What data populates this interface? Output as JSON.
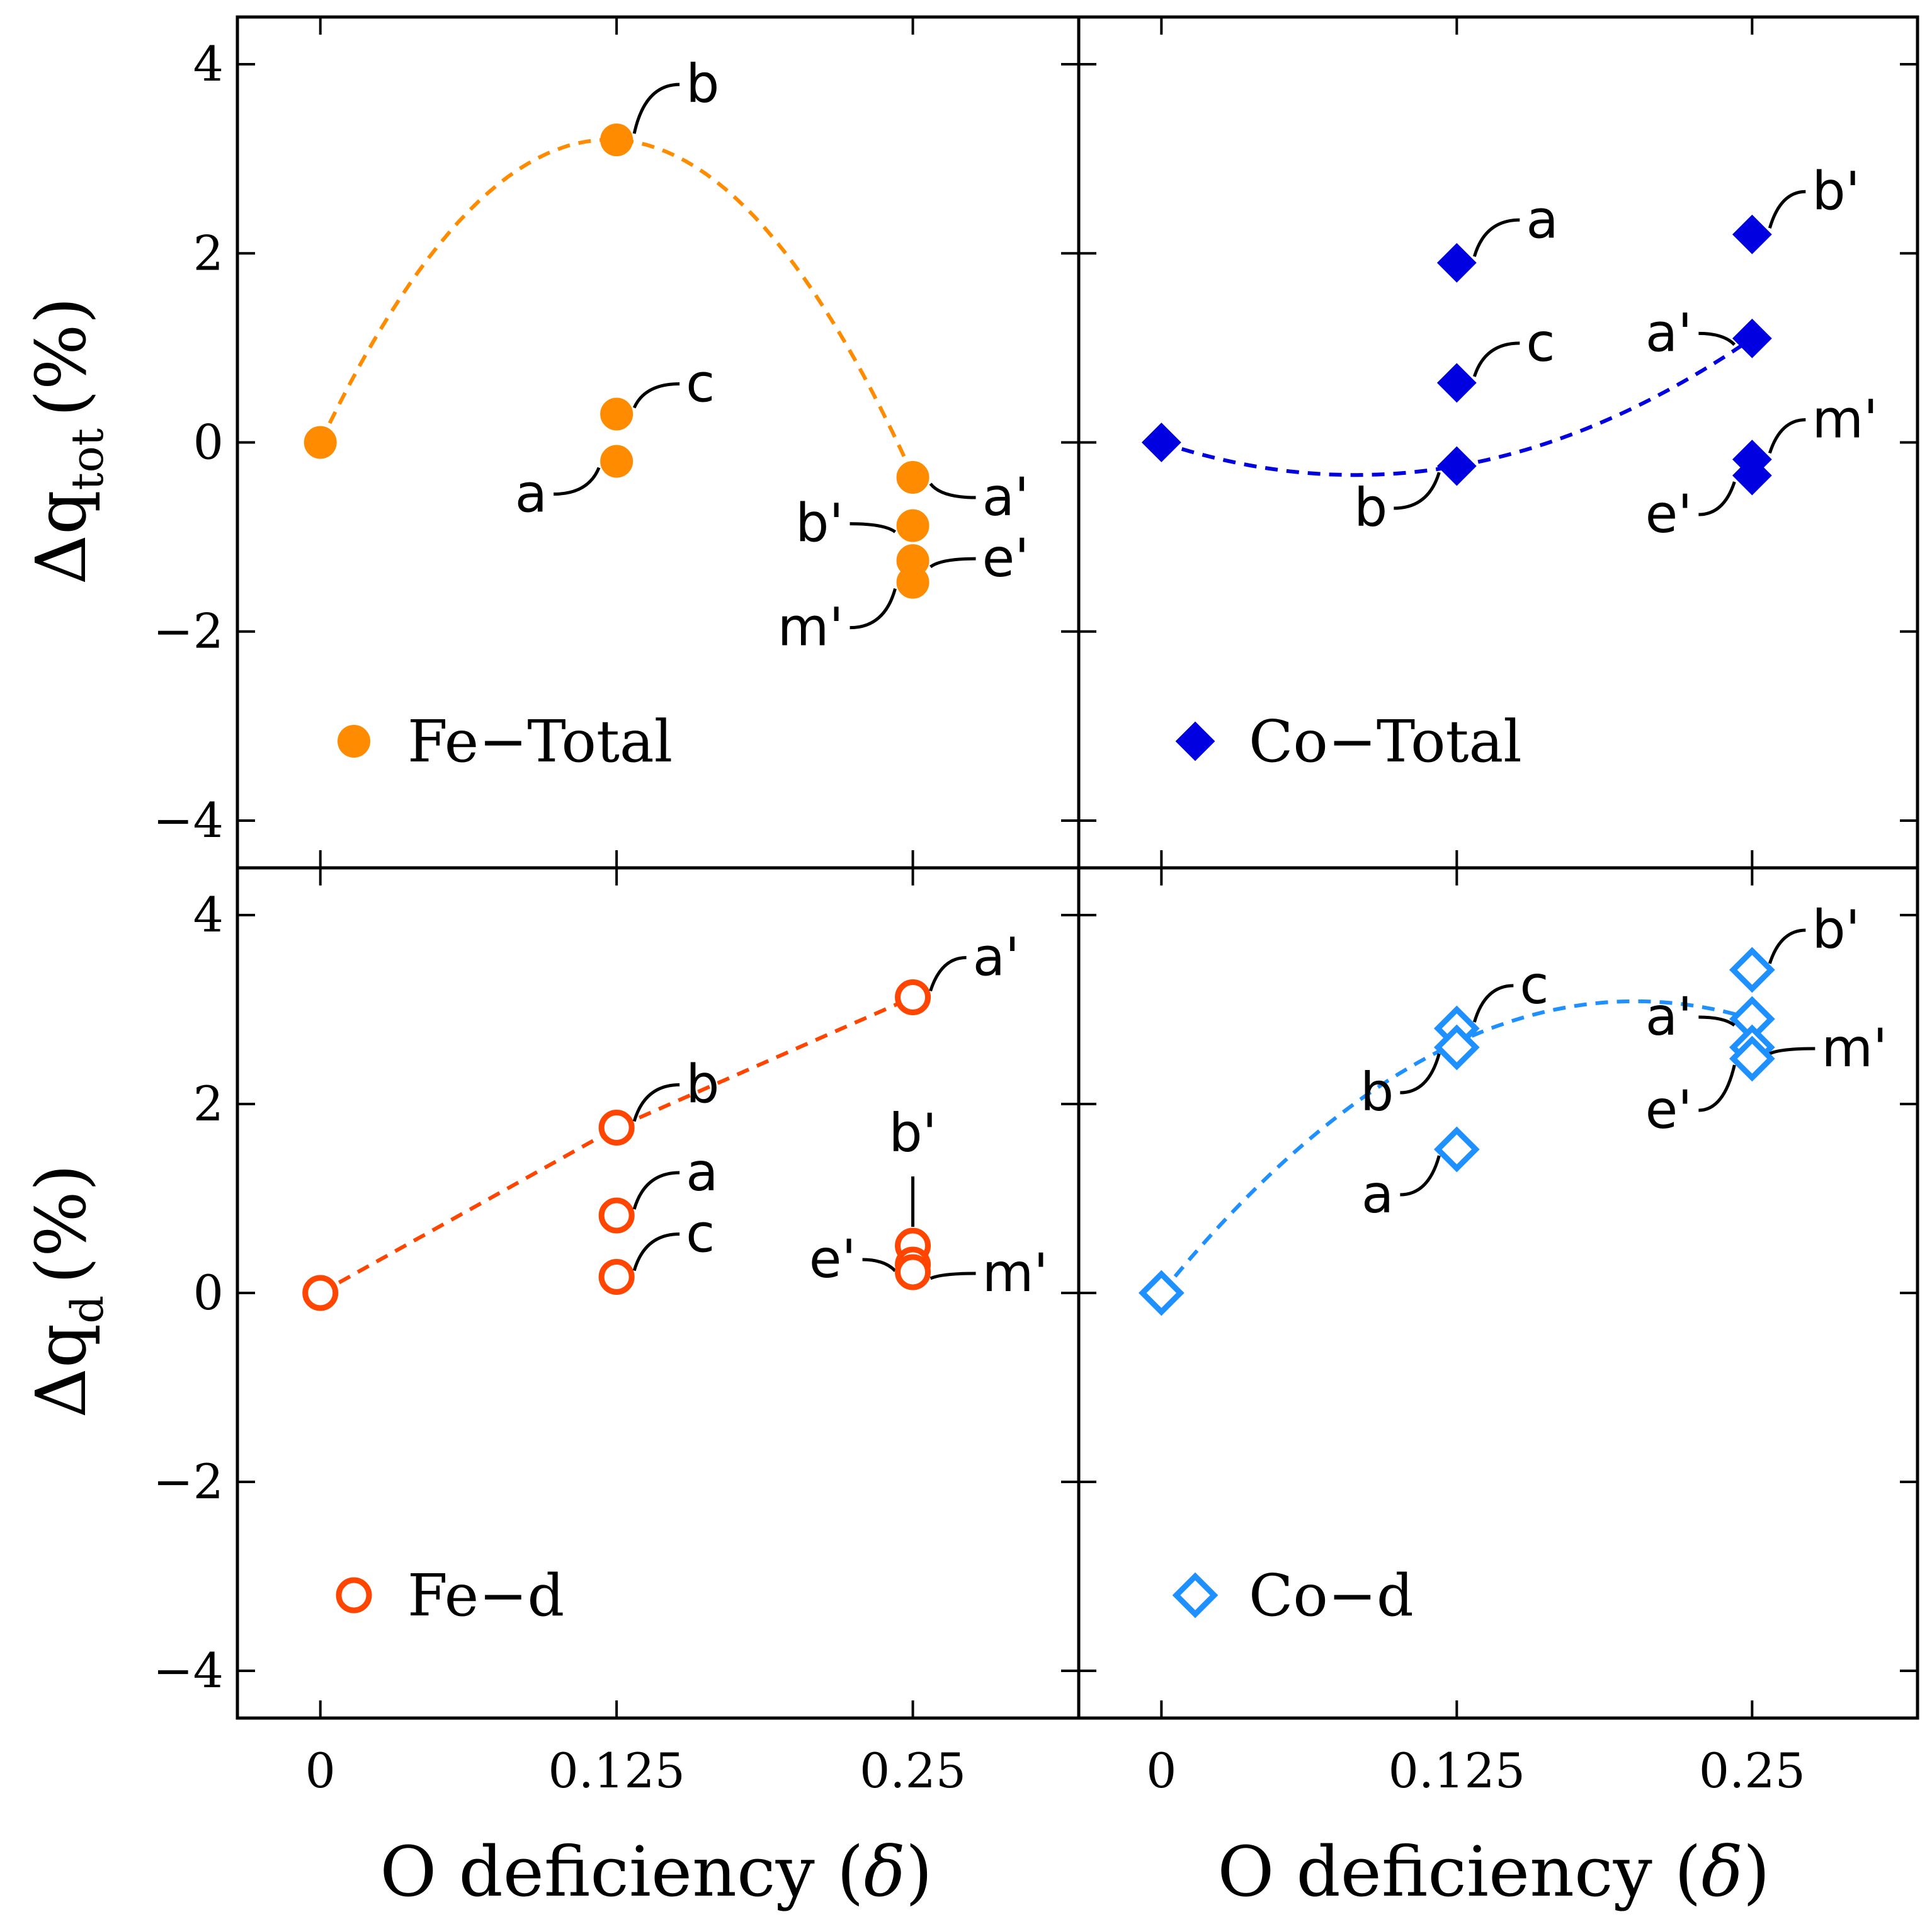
{
  "figure": {
    "xlabel": "O deficiency (",
    "xlabel_symbol": "δ",
    "xlabel_end": ")",
    "ylabel_top_main": "Δq",
    "ylabel_top_sub": "tot",
    "ylabel_bottom_main": "Δq",
    "ylabel_bottom_sub": "d",
    "ylabel_unit": "(%)"
  },
  "chart_data": [
    {
      "id": "fe-total",
      "type": "scatter",
      "legend": "Fe−Total",
      "color": "#ff8c00",
      "marker": "circle",
      "filled": true,
      "legend_placement": "bottom-left",
      "xlim": [
        -0.035,
        0.32
      ],
      "ylim": [
        -4.5,
        4.5
      ],
      "xticks": [
        "0",
        "0.125",
        "0.25"
      ],
      "yticks": [
        "4",
        "2",
        "0",
        "−2",
        "−4"
      ],
      "trend": {
        "x": [
          0,
          0.125,
          0.25
        ],
        "y": [
          0,
          3.2,
          -0.35
        ]
      },
      "points": [
        {
          "x": 0,
          "y": 0,
          "label": ""
        },
        {
          "x": 0.125,
          "y": 3.2,
          "label": "b"
        },
        {
          "x": 0.125,
          "y": 0.3,
          "label": "c"
        },
        {
          "x": 0.125,
          "y": -0.2,
          "label": "a"
        },
        {
          "x": 0.25,
          "y": -0.37,
          "label": "a'"
        },
        {
          "x": 0.25,
          "y": -0.88,
          "label": "b'"
        },
        {
          "x": 0.25,
          "y": -1.25,
          "label": "e'"
        },
        {
          "x": 0.25,
          "y": -1.48,
          "label": "m'"
        }
      ]
    },
    {
      "id": "co-total",
      "type": "scatter",
      "legend": "Co−Total",
      "color": "#0000e0",
      "marker": "diamond",
      "filled": true,
      "legend_placement": "bottom-left",
      "xlim": [
        -0.035,
        0.32
      ],
      "ylim": [
        -4.5,
        4.5
      ],
      "xticks": [
        "0",
        "0.125",
        "0.25"
      ],
      "yticks": [
        "4",
        "2",
        "0",
        "−2",
        "−4"
      ],
      "trend": {
        "x": [
          0,
          0.125,
          0.25
        ],
        "y": [
          0,
          -0.25,
          1.1
        ]
      },
      "points": [
        {
          "x": 0,
          "y": 0,
          "label": ""
        },
        {
          "x": 0.125,
          "y": 1.9,
          "label": "a"
        },
        {
          "x": 0.125,
          "y": 0.63,
          "label": "c"
        },
        {
          "x": 0.125,
          "y": -0.25,
          "label": "b"
        },
        {
          "x": 0.25,
          "y": 2.2,
          "label": "b'"
        },
        {
          "x": 0.25,
          "y": 1.1,
          "label": "a'"
        },
        {
          "x": 0.25,
          "y": -0.18,
          "label": "m'"
        },
        {
          "x": 0.25,
          "y": -0.35,
          "label": "e'"
        }
      ]
    },
    {
      "id": "fe-d",
      "type": "scatter",
      "legend": "Fe−d",
      "color": "#ff4500",
      "marker": "circle",
      "filled": false,
      "legend_placement": "bottom-left",
      "xlim": [
        -0.035,
        0.32
      ],
      "ylim": [
        -4.5,
        4.5
      ],
      "xticks": [
        "0",
        "0.125",
        "0.25"
      ],
      "yticks": [
        "4",
        "2",
        "0",
        "−2",
        "−4"
      ],
      "trend": {
        "x": [
          0,
          0.125,
          0.25
        ],
        "y": [
          0,
          1.75,
          3.13
        ]
      },
      "points": [
        {
          "x": 0,
          "y": 0,
          "label": ""
        },
        {
          "x": 0.125,
          "y": 1.75,
          "label": "b"
        },
        {
          "x": 0.125,
          "y": 0.82,
          "label": "a"
        },
        {
          "x": 0.125,
          "y": 0.17,
          "label": "c"
        },
        {
          "x": 0.25,
          "y": 3.13,
          "label": "a'"
        },
        {
          "x": 0.25,
          "y": 0.5,
          "label": "b'"
        },
        {
          "x": 0.25,
          "y": 0.3,
          "label": "e'"
        },
        {
          "x": 0.25,
          "y": 0.22,
          "label": "m'"
        }
      ]
    },
    {
      "id": "co-d",
      "type": "scatter",
      "legend": "Co−d",
      "color": "#1e90ff",
      "marker": "diamond",
      "filled": false,
      "legend_placement": "bottom-left",
      "xlim": [
        -0.035,
        0.32
      ],
      "ylim": [
        -4.5,
        4.5
      ],
      "xticks": [
        "0",
        "0.125",
        "0.25"
      ],
      "yticks": [
        "4",
        "2",
        "0",
        "−2",
        "−4"
      ],
      "trend": {
        "x": [
          0,
          0.125,
          0.25
        ],
        "y": [
          0,
          2.65,
          2.9
        ]
      },
      "points": [
        {
          "x": 0,
          "y": 0,
          "label": ""
        },
        {
          "x": 0.125,
          "y": 2.8,
          "label": "c"
        },
        {
          "x": 0.125,
          "y": 2.6,
          "label": "b"
        },
        {
          "x": 0.125,
          "y": 1.52,
          "label": "a"
        },
        {
          "x": 0.25,
          "y": 3.42,
          "label": "b'"
        },
        {
          "x": 0.25,
          "y": 2.9,
          "label": "a'"
        },
        {
          "x": 0.25,
          "y": 2.6,
          "label": "m'"
        },
        {
          "x": 0.25,
          "y": 2.48,
          "label": "e'"
        }
      ]
    }
  ]
}
